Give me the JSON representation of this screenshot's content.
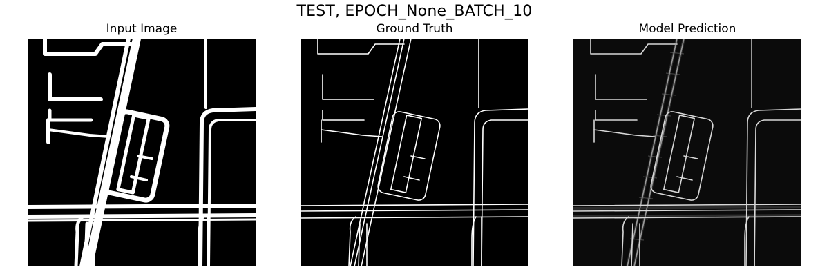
{
  "figure": {
    "title": "TEST, EPOCH_None_BATCH_10"
  },
  "panels": [
    {
      "title": "Input Image"
    },
    {
      "title": "Ground Truth"
    },
    {
      "title": "Model Prediction"
    }
  ],
  "colors": {
    "background": "#ffffff",
    "input_bg": "#000000",
    "truth_bg": "#000000",
    "prediction_bg": "#0b0b0b",
    "road": "#ffffff",
    "prediction_road": "#d8d8d8"
  }
}
